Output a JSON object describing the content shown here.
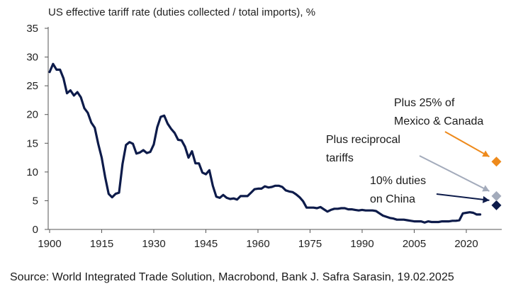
{
  "chart_data": {
    "type": "line",
    "title": "US effective tariff rate (duties collected / total imports), %",
    "xlabel": "",
    "ylabel": "",
    "xlim": [
      1900,
      2026
    ],
    "ylim": [
      0,
      35
    ],
    "x_ticks": [
      1900,
      1915,
      1930,
      1945,
      1960,
      1975,
      1990,
      2005,
      2020
    ],
    "y_ticks": [
      0,
      5,
      10,
      15,
      20,
      25,
      30,
      35
    ],
    "grid": false,
    "legend": "none",
    "series": [
      {
        "color": "#0d1b4a",
        "points": [
          [
            1900,
            27.4
          ],
          [
            1901,
            28.8
          ],
          [
            1902,
            27.8
          ],
          [
            1903,
            27.8
          ],
          [
            1904,
            26.3
          ],
          [
            1905,
            23.7
          ],
          [
            1906,
            24.2
          ],
          [
            1907,
            23.3
          ],
          [
            1908,
            23.9
          ],
          [
            1909,
            23.0
          ],
          [
            1910,
            21.1
          ],
          [
            1911,
            20.3
          ],
          [
            1912,
            18.6
          ],
          [
            1913,
            17.7
          ],
          [
            1914,
            14.9
          ],
          [
            1915,
            12.5
          ],
          [
            1916,
            9.1
          ],
          [
            1917,
            6.2
          ],
          [
            1918,
            5.6
          ],
          [
            1919,
            6.2
          ],
          [
            1920,
            6.4
          ],
          [
            1921,
            11.4
          ],
          [
            1922,
            14.7
          ],
          [
            1923,
            15.2
          ],
          [
            1924,
            14.9
          ],
          [
            1925,
            13.2
          ],
          [
            1926,
            13.4
          ],
          [
            1927,
            13.8
          ],
          [
            1928,
            13.3
          ],
          [
            1929,
            13.5
          ],
          [
            1930,
            14.8
          ],
          [
            1931,
            17.8
          ],
          [
            1932,
            19.6
          ],
          [
            1933,
            19.8
          ],
          [
            1934,
            18.4
          ],
          [
            1935,
            17.5
          ],
          [
            1936,
            16.8
          ],
          [
            1937,
            15.6
          ],
          [
            1938,
            15.5
          ],
          [
            1939,
            14.4
          ],
          [
            1940,
            12.5
          ],
          [
            1941,
            13.6
          ],
          [
            1942,
            11.5
          ],
          [
            1943,
            11.5
          ],
          [
            1944,
            9.9
          ],
          [
            1945,
            9.6
          ],
          [
            1946,
            10.3
          ],
          [
            1947,
            7.6
          ],
          [
            1948,
            5.7
          ],
          [
            1949,
            5.5
          ],
          [
            1950,
            6.0
          ],
          [
            1951,
            5.5
          ],
          [
            1952,
            5.3
          ],
          [
            1953,
            5.4
          ],
          [
            1954,
            5.2
          ],
          [
            1955,
            5.8
          ],
          [
            1956,
            5.8
          ],
          [
            1957,
            5.8
          ],
          [
            1958,
            6.4
          ],
          [
            1959,
            7.0
          ],
          [
            1960,
            7.1
          ],
          [
            1961,
            7.1
          ],
          [
            1962,
            7.5
          ],
          [
            1963,
            7.3
          ],
          [
            1964,
            7.4
          ],
          [
            1965,
            7.6
          ],
          [
            1966,
            7.6
          ],
          [
            1967,
            7.4
          ],
          [
            1968,
            6.8
          ],
          [
            1969,
            6.6
          ],
          [
            1970,
            6.5
          ],
          [
            1971,
            6.1
          ],
          [
            1972,
            5.6
          ],
          [
            1973,
            4.9
          ],
          [
            1974,
            3.8
          ],
          [
            1975,
            3.8
          ],
          [
            1976,
            3.8
          ],
          [
            1977,
            3.7
          ],
          [
            1978,
            3.9
          ],
          [
            1979,
            3.5
          ],
          [
            1980,
            3.1
          ],
          [
            1981,
            3.4
          ],
          [
            1982,
            3.6
          ],
          [
            1983,
            3.6
          ],
          [
            1984,
            3.7
          ],
          [
            1985,
            3.7
          ],
          [
            1986,
            3.5
          ],
          [
            1987,
            3.5
          ],
          [
            1988,
            3.4
          ],
          [
            1989,
            3.3
          ],
          [
            1990,
            3.4
          ],
          [
            1991,
            3.3
          ],
          [
            1992,
            3.3
          ],
          [
            1993,
            3.3
          ],
          [
            1994,
            3.2
          ],
          [
            1995,
            2.8
          ],
          [
            1996,
            2.4
          ],
          [
            1997,
            2.2
          ],
          [
            1998,
            2.0
          ],
          [
            1999,
            1.9
          ],
          [
            2000,
            1.7
          ],
          [
            2001,
            1.7
          ],
          [
            2002,
            1.7
          ],
          [
            2003,
            1.6
          ],
          [
            2004,
            1.5
          ],
          [
            2005,
            1.4
          ],
          [
            2006,
            1.4
          ],
          [
            2007,
            1.4
          ],
          [
            2008,
            1.2
          ],
          [
            2009,
            1.4
          ],
          [
            2010,
            1.3
          ],
          [
            2011,
            1.3
          ],
          [
            2012,
            1.3
          ],
          [
            2013,
            1.4
          ],
          [
            2014,
            1.4
          ],
          [
            2015,
            1.4
          ],
          [
            2016,
            1.5
          ],
          [
            2017,
            1.5
          ],
          [
            2018,
            1.6
          ],
          [
            2019,
            2.8
          ],
          [
            2020,
            2.9
          ],
          [
            2021,
            3.0
          ],
          [
            2022,
            2.9
          ],
          [
            2023,
            2.6
          ],
          [
            2024,
            2.6
          ]
        ]
      }
    ],
    "markers": [
      {
        "x": 2025,
        "y": 4.2,
        "color": "#0d1b4a"
      },
      {
        "x": 2025,
        "y": 5.8,
        "color": "#a3abbb"
      },
      {
        "x": 2025,
        "y": 11.8,
        "color": "#ee8a1c"
      }
    ],
    "annotations": [
      {
        "lines": [
          "Plus 25% of",
          "Mexico & Canada"
        ],
        "color": "#ee8a1c"
      },
      {
        "lines": [
          "Plus reciprocal",
          "tariffs"
        ],
        "color": "#a3abbb"
      },
      {
        "lines": [
          "10% duties",
          "on China"
        ],
        "color": "#0d1b4a"
      }
    ],
    "source": "Source: World Integrated Trade Solution, Macrobond, Bank J. Safra Sarasin, 19.02.2025"
  }
}
